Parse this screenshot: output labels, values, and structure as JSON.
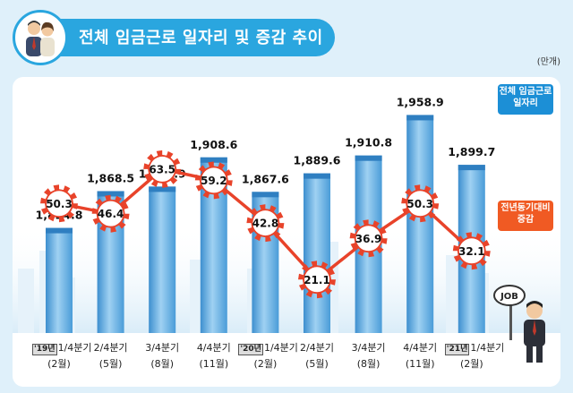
{
  "header": {
    "title": "전체 임금근로 일자리 및 증감 추이"
  },
  "unit": "(만개)",
  "legend": {
    "total": "전체 임금근로 일자리",
    "yoy": "전년동기대비 증감"
  },
  "job_sign": "JOB",
  "colors": {
    "bar": "#58a9df",
    "line": "#e8432a",
    "accent": "#2aa6df"
  },
  "chart_data": {
    "type": "bar",
    "categories": [
      {
        "year": "'19년",
        "quarter": "1/4분기",
        "month": "(2월)"
      },
      {
        "year": "",
        "quarter": "2/4분기",
        "month": "(5월)"
      },
      {
        "year": "",
        "quarter": "3/4분기",
        "month": "(8월)"
      },
      {
        "year": "",
        "quarter": "4/4분기",
        "month": "(11월)"
      },
      {
        "year": "'20년",
        "quarter": "1/4분기",
        "month": "(2월)"
      },
      {
        "year": "",
        "quarter": "2/4분기",
        "month": "(5월)"
      },
      {
        "year": "",
        "quarter": "3/4분기",
        "month": "(8월)"
      },
      {
        "year": "",
        "quarter": "4/4분기",
        "month": "(11월)"
      },
      {
        "year": "'21년",
        "quarter": "1/4분기",
        "month": "(2월)"
      }
    ],
    "series": [
      {
        "name": "전체 임금근로 일자리",
        "type": "bar",
        "values": [
          1824.8,
          1868.5,
          1873.9,
          1908.6,
          1867.6,
          1889.6,
          1910.8,
          1958.9,
          1899.7
        ],
        "labels": [
          "1,824.8",
          "1,868.5",
          "1,873.9",
          "1,908.6",
          "1,867.6",
          "1,889.6",
          "1,910.8",
          "1,958.9",
          "1,899.7"
        ]
      },
      {
        "name": "전년동기대비 증감",
        "type": "line",
        "values": [
          50.3,
          46.4,
          63.5,
          59.2,
          42.8,
          21.1,
          36.9,
          50.3,
          32.1
        ],
        "labels": [
          "50.3",
          "46.4",
          "63.5",
          "59.2",
          "42.8",
          "21.1",
          "36.9",
          "50.3",
          "32.1"
        ]
      }
    ],
    "ylim_bar": [
      1700,
      1970
    ],
    "ylim_line": [
      15,
      70
    ]
  }
}
